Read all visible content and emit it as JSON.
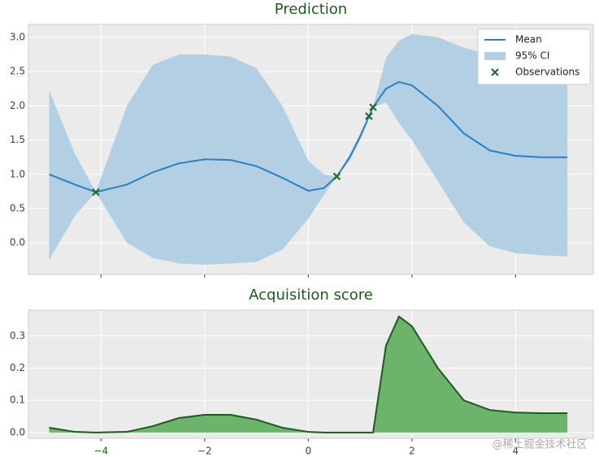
{
  "chart_data": [
    {
      "type": "line",
      "title": "Prediction",
      "x": [
        -5,
        -4.5,
        -4.1,
        -3.5,
        -3,
        -2.5,
        -2,
        -1.5,
        -1,
        -0.5,
        0,
        0.3,
        0.55,
        0.8,
        1.0,
        1.25,
        1.5,
        1.75,
        2,
        2.5,
        3,
        3.5,
        4,
        4.5,
        5
      ],
      "series": [
        {
          "name": "Mean",
          "color": "#2e7fc0",
          "values": [
            1.0,
            0.85,
            0.74,
            0.85,
            1.03,
            1.16,
            1.22,
            1.21,
            1.12,
            0.95,
            0.76,
            0.8,
            0.97,
            1.25,
            1.55,
            1.98,
            2.25,
            2.35,
            2.3,
            2.0,
            1.6,
            1.35,
            1.27,
            1.25,
            1.25
          ]
        }
      ],
      "band": {
        "name": "95% CI",
        "color": "#b3cfe4",
        "upper": [
          2.22,
          1.3,
          0.74,
          2.0,
          2.6,
          2.75,
          2.75,
          2.72,
          2.55,
          2.0,
          1.2,
          1.0,
          0.97,
          1.3,
          1.6,
          1.98,
          2.7,
          2.95,
          3.05,
          3.0,
          2.85,
          2.75,
          2.72,
          2.7,
          2.7
        ],
        "lower": [
          -0.25,
          0.4,
          0.74,
          0.0,
          -0.22,
          -0.3,
          -0.32,
          -0.3,
          -0.28,
          -0.1,
          0.35,
          0.7,
          0.97,
          1.2,
          1.5,
          1.98,
          2.05,
          1.75,
          1.5,
          0.9,
          0.3,
          -0.05,
          -0.15,
          -0.18,
          -0.2
        ]
      },
      "observations": {
        "name": "Observations",
        "color": "#1e6b2a",
        "x": [
          -4.1,
          0.55,
          1.17,
          1.25
        ],
        "y": [
          0.74,
          0.97,
          1.85,
          1.98
        ]
      },
      "xlim": [
        -5.4,
        5.5
      ],
      "ylim": [
        -0.46,
        3.19
      ],
      "xticks": [
        -4,
        -2,
        0,
        2,
        4
      ],
      "xtick_labels": false,
      "yticks": [
        {
          "value": 0,
          "label": "0.0"
        },
        {
          "value": 0.5,
          "label": "0.5"
        },
        {
          "value": 1,
          "label": "1.0"
        },
        {
          "value": 1.5,
          "label": "1.5"
        },
        {
          "value": 2,
          "label": "2.0"
        },
        {
          "value": 2.5,
          "label": "2.5"
        },
        {
          "value": 3,
          "label": "3.0"
        }
      ],
      "grid": true,
      "legend": "upper right"
    },
    {
      "type": "area",
      "title": "Acquisition score",
      "x": [
        -5,
        -4.5,
        -4.1,
        -3.5,
        -3,
        -2.5,
        -2,
        -1.5,
        -1,
        -0.5,
        0,
        0.3,
        0.55,
        0.8,
        1.0,
        1.25,
        1.5,
        1.75,
        2,
        2.5,
        3,
        3.5,
        4,
        4.5,
        5
      ],
      "values": [
        0.015,
        0.002,
        0,
        0.002,
        0.02,
        0.045,
        0.055,
        0.055,
        0.04,
        0.015,
        0.002,
        0,
        0,
        0,
        0,
        0,
        0.27,
        0.36,
        0.33,
        0.2,
        0.1,
        0.07,
        0.062,
        0.06,
        0.06
      ],
      "color": "#6cb46c",
      "line_color": "#1e5a1e",
      "xlim": [
        -5.4,
        5.5
      ],
      "ylim": [
        -0.018,
        0.38
      ],
      "xticks": [
        {
          "value": -4,
          "label": "−4"
        },
        {
          "value": -2,
          "label": "−2"
        },
        0,
        2,
        4
      ],
      "xtick_labels": true,
      "yticks": [
        {
          "value": 0,
          "label": "0.0"
        },
        {
          "value": 0.1,
          "label": "0.1"
        },
        {
          "value": 0.2,
          "label": "0.2"
        },
        {
          "value": 0.3,
          "label": "0.3"
        }
      ],
      "grid": true
    }
  ],
  "watermark": "@稀土掘金技术社区"
}
